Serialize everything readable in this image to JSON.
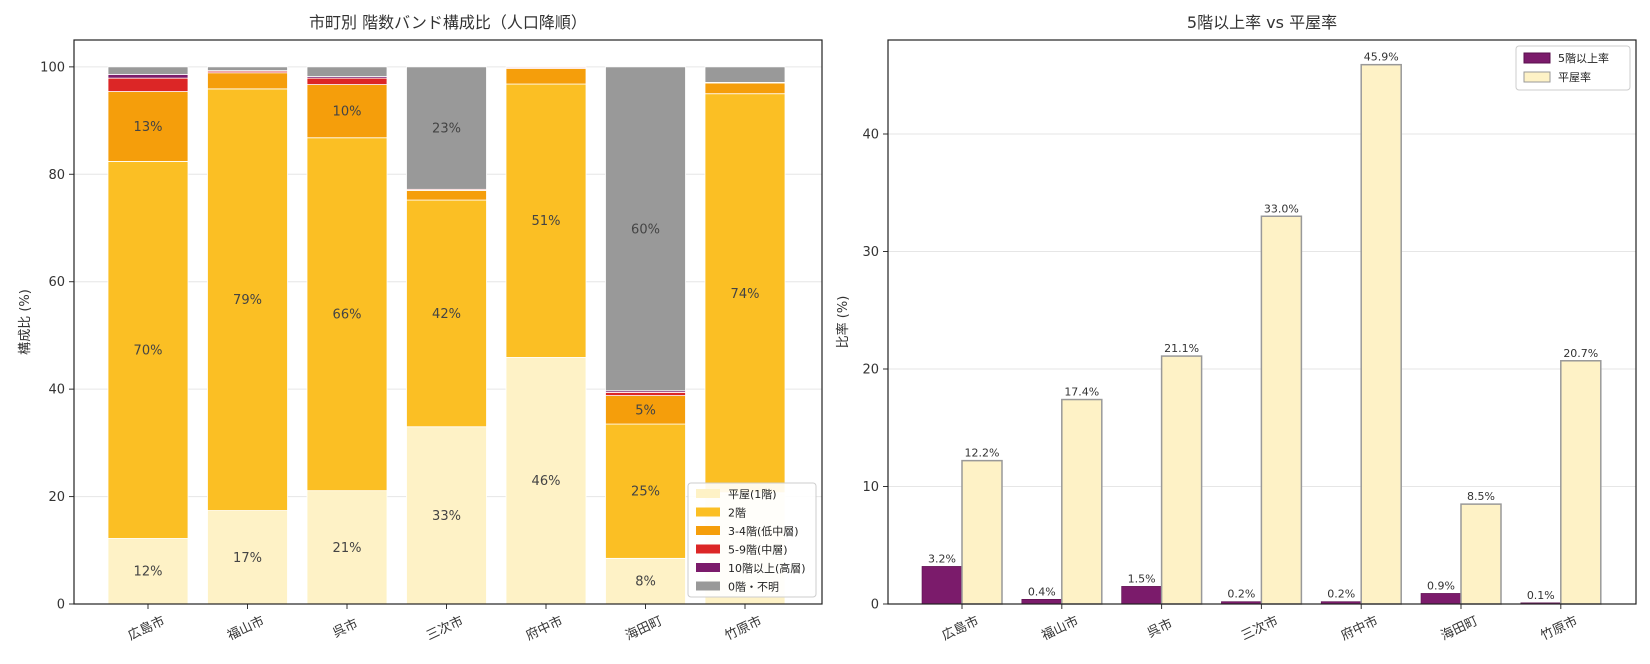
{
  "chart_data": [
    {
      "type": "bar",
      "stacked": true,
      "title": "市町別 階数バンド構成比（人口降順）",
      "xlabel": "",
      "ylabel": "構成比 (%)",
      "ylim": [
        0,
        105
      ],
      "yticks": [
        0,
        20,
        40,
        60,
        80,
        100
      ],
      "grid": true,
      "legend_position": "lower-right",
      "categories": [
        "広島市",
        "福山市",
        "呉市",
        "三次市",
        "府中市",
        "海田町",
        "竹原市"
      ],
      "series": [
        {
          "name": "平屋(1階)",
          "color": "#fef2c6",
          "values": [
            12.2,
            17.4,
            21.1,
            33.0,
            45.9,
            8.5,
            20.7
          ],
          "labels": [
            "12%",
            "17%",
            "21%",
            "33%",
            "46%",
            "8%",
            ""
          ]
        },
        {
          "name": "2階",
          "color": "#fbbf24",
          "values": [
            70.2,
            78.5,
            65.7,
            42.2,
            50.9,
            25.0,
            74.3
          ],
          "labels": [
            "70%",
            "79%",
            "66%",
            "42%",
            "51%",
            "25%",
            "74%"
          ]
        },
        {
          "name": "3-4階(低中層)",
          "color": "#f59e0b",
          "values": [
            13.0,
            3.0,
            9.9,
            1.8,
            2.9,
            5.3,
            2.0
          ],
          "labels": [
            "13%",
            "",
            "10%",
            "",
            "",
            "5%",
            ""
          ]
        },
        {
          "name": "5-9階(中層)",
          "color": "#dc2626",
          "values": [
            2.5,
            0.3,
            1.2,
            0.2,
            0.2,
            0.6,
            0.1
          ],
          "labels": [
            "",
            "",
            "",
            "",
            "",
            "",
            ""
          ]
        },
        {
          "name": "10階以上(高層)",
          "color": "#7b1b6b",
          "values": [
            0.7,
            0.1,
            0.3,
            0.0,
            0.0,
            0.3,
            0.0
          ],
          "labels": [
            "",
            "",
            "",
            "",
            "",
            "",
            ""
          ]
        },
        {
          "name": "0階・不明",
          "color": "#999999",
          "values": [
            1.4,
            0.7,
            1.8,
            22.8,
            0.1,
            60.3,
            2.9
          ],
          "labels": [
            "",
            "",
            "",
            "23%",
            "",
            "60%",
            ""
          ]
        }
      ]
    },
    {
      "type": "bar",
      "title": "5階以上率 vs 平屋率",
      "xlabel": "",
      "ylabel": "比率 (%)",
      "ylim": [
        0,
        48
      ],
      "yticks": [
        0,
        10,
        20,
        30,
        40
      ],
      "grid": true,
      "legend_position": "upper-right",
      "categories": [
        "広島市",
        "福山市",
        "呉市",
        "三次市",
        "府中市",
        "海田町",
        "竹原市"
      ],
      "series": [
        {
          "name": "5階以上率",
          "color": "#7b1b6b",
          "values": [
            3.2,
            0.4,
            1.5,
            0.2,
            0.2,
            0.9,
            0.1
          ],
          "labels": [
            "3.2%",
            "0.4%",
            "1.5%",
            "0.2%",
            "0.2%",
            "0.9%",
            "0.1%"
          ]
        },
        {
          "name": "平屋率",
          "color": "#fef2c6",
          "values": [
            12.2,
            17.4,
            21.1,
            33.0,
            45.9,
            8.5,
            20.7
          ],
          "labels": [
            "12.2%",
            "17.4%",
            "21.1%",
            "33.0%",
            "45.9%",
            "8.5%",
            "20.7%"
          ]
        }
      ]
    }
  ]
}
